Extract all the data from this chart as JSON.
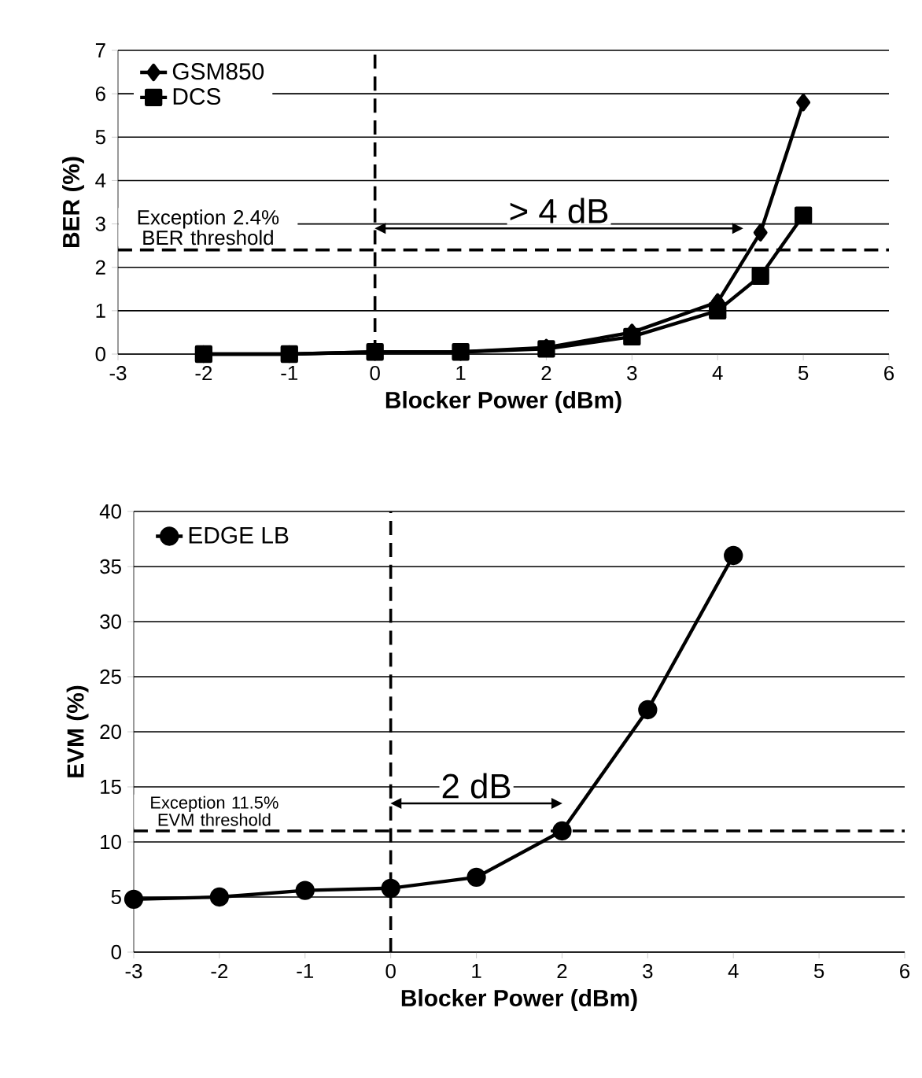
{
  "chart_data": [
    {
      "type": "line",
      "xlabel": "Blocker Power (dBm)",
      "ylabel": "BER (%)",
      "xlim": [
        -3,
        6
      ],
      "xticks": [
        -3,
        -2,
        -1,
        0,
        1,
        2,
        3,
        4,
        5,
        6
      ],
      "ylim": [
        0,
        7
      ],
      "yticks": [
        0,
        1,
        2,
        3,
        4,
        5,
        6,
        7
      ],
      "grid": "y",
      "legend": "top left",
      "line_style": "solid",
      "x": [
        -2,
        -1,
        0,
        1,
        2,
        3,
        4,
        4.5,
        5
      ],
      "series": [
        {
          "name": "GSM850",
          "color": "#000000",
          "marker": "diamond",
          "values": [
            0,
            0,
            0.05,
            0.05,
            0.15,
            0.5,
            1.2,
            2.8,
            5.8
          ]
        },
        {
          "name": "DCS",
          "color": "#000000",
          "marker": "square",
          "values": [
            0,
            0,
            0.05,
            0.05,
            0.12,
            0.4,
            1.0,
            1.8,
            3.2
          ]
        }
      ],
      "ref_lines": [
        {
          "axis": "x",
          "value": 0,
          "line_style": "dashed",
          "color": "#000000"
        },
        {
          "axis": "y",
          "value": 2.4,
          "line_style": "dashed",
          "color": "#000000",
          "label": "Exception 2.4% BER threshold"
        }
      ],
      "annotations": [
        "> 4 dB"
      ]
    },
    {
      "type": "line",
      "xlabel": "Blocker Power (dBm)",
      "ylabel": "EVM (%)",
      "xlim": [
        -3,
        6
      ],
      "xticks": [
        -3,
        -2,
        -1,
        0,
        1,
        2,
        3,
        4,
        5,
        6
      ],
      "ylim": [
        0,
        40
      ],
      "yticks": [
        0,
        5,
        10,
        15,
        20,
        25,
        30,
        35,
        40
      ],
      "grid": "y",
      "legend": "top left",
      "line_style": "solid",
      "x": [
        -3,
        -2,
        -1,
        0,
        1,
        2,
        3,
        4
      ],
      "series": [
        {
          "name": "EDGE LB",
          "color": "#000000",
          "marker": "circle",
          "values": [
            4.8,
            5.0,
            5.6,
            5.8,
            6.8,
            11,
            22,
            36
          ]
        }
      ],
      "ref_lines": [
        {
          "axis": "x",
          "value": 0,
          "line_style": "dashed",
          "color": "#000000"
        },
        {
          "axis": "y",
          "value": 11,
          "line_style": "dashed",
          "color": "#000000",
          "label": "Exception 11.5% EVM threshold"
        }
      ],
      "annotations": [
        "2 dB"
      ]
    }
  ]
}
